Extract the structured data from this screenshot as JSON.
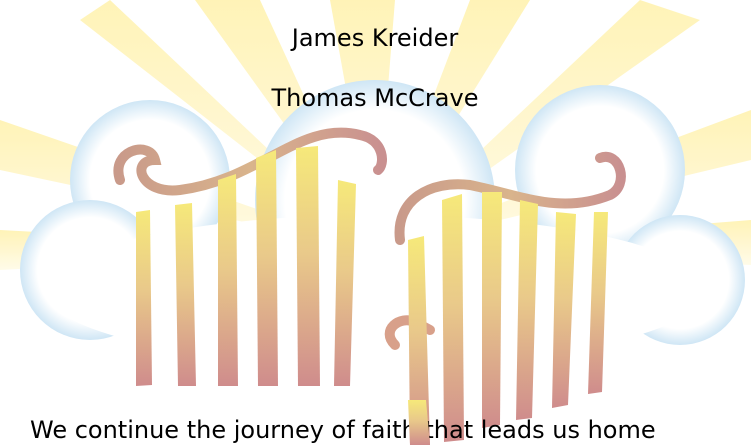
{
  "credits": {
    "names": [
      "James Kreider",
      "Thomas McCrave"
    ],
    "caption": "We continue the journey of faith that leads us home"
  }
}
